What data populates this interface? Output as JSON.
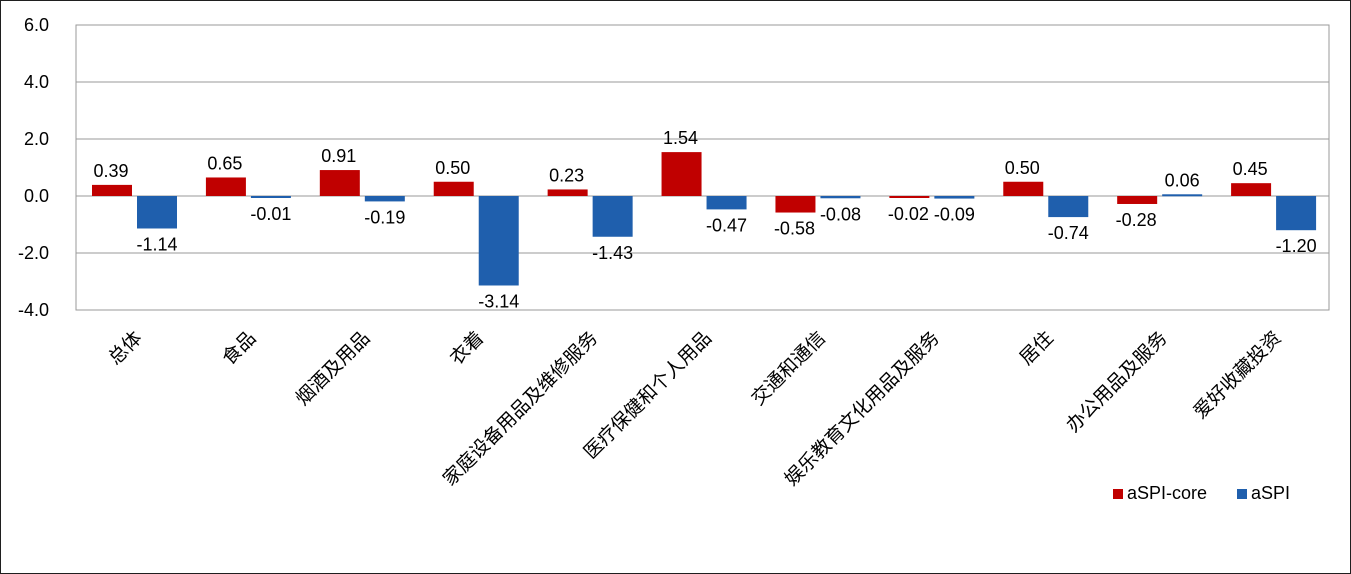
{
  "chart_data": {
    "type": "bar",
    "categories": [
      "总体",
      "食品",
      "烟酒及用品",
      "衣着",
      "家庭设备用品及维修服务",
      "医疗保健和个人用品",
      "交通和通信",
      "娱乐教育文化用品及服务",
      "居住",
      "办公用品及服务",
      "爱好收藏投资"
    ],
    "series": [
      {
        "name": "aSPI-core",
        "color": "#c00000",
        "values": [
          0.39,
          0.65,
          0.91,
          0.5,
          0.23,
          1.54,
          -0.58,
          -0.02,
          0.5,
          -0.28,
          0.45
        ]
      },
      {
        "name": "aSPI",
        "color": "#1f5fad",
        "values": [
          -1.14,
          -0.01,
          -0.19,
          -3.14,
          -1.43,
          -0.47,
          -0.08,
          -0.09,
          -0.74,
          0.06,
          -1.2
        ]
      }
    ],
    "ylim": [
      -4.0,
      6.0
    ],
    "yticks": [
      "6.0",
      "4.0",
      "2.0",
      "0.0",
      "-2.0",
      "-4.0"
    ],
    "grid": true,
    "legend_position": "bottom-right"
  }
}
